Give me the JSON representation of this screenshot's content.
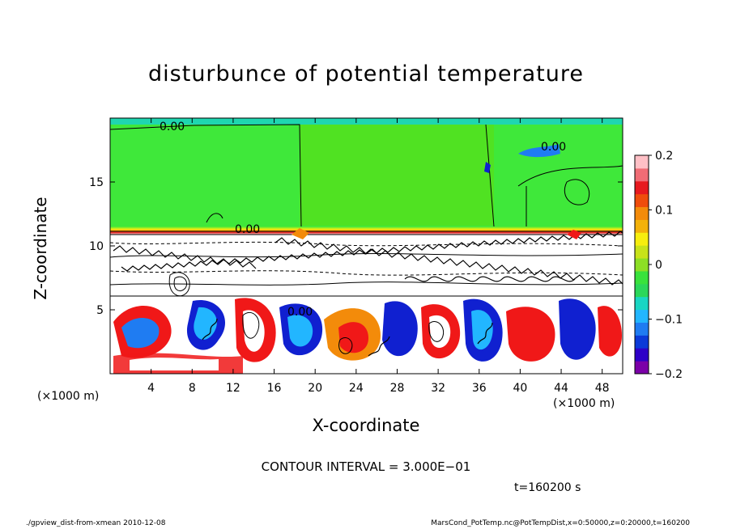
{
  "chart_data": {
    "type": "heatmap",
    "title": "disturbunce of potential temperature",
    "xlabel": "X-coordinate",
    "ylabel": "Z-coordinate",
    "x_unit": "(×1000 m)",
    "xlim": [
      0,
      50
    ],
    "ylim": [
      0,
      20
    ],
    "x_ticks": [
      4,
      8,
      12,
      16,
      20,
      24,
      28,
      32,
      36,
      40,
      44,
      48
    ],
    "y_ticks": [
      5,
      10,
      15
    ],
    "colorbar": {
      "range": [
        -0.2,
        0.2
      ],
      "tick_values": [
        0.2,
        0.1,
        0,
        -0.1,
        -0.2
      ],
      "tick_labels": [
        "0.2",
        "0.1",
        "0",
        "−0.1",
        "−0.2"
      ],
      "colors": [
        "#7b00a8",
        "#2e00c8",
        "#0b3ad8",
        "#1f7cf2",
        "#22b6ff",
        "#19d6c3",
        "#2bd75a",
        "#39e23c",
        "#8ddf25",
        "#c8e31a",
        "#f7ee0e",
        "#f3b20a",
        "#f38b0a",
        "#ef4d0c",
        "#e7191f",
        "#f06c75",
        "#ffc0c6"
      ]
    },
    "contour_labels": [
      "0.00",
      "0.00",
      "0.00",
      "0.00"
    ],
    "contour_interval": "CONTOUR INTERVAL = 3.000E−01",
    "time": "t=160200 s"
  },
  "footer": {
    "left": "./gpview_dist-from-xmean   2010-12-08",
    "right": "MarsCond_PotTemp.nc@PotTempDist,x=0:50000,z=0:20000,t=160200"
  },
  "colors": {
    "background_field": "#3fe83a",
    "stable_band": "#ffffff",
    "positive": "#f01818",
    "negative": "#1020d0"
  }
}
